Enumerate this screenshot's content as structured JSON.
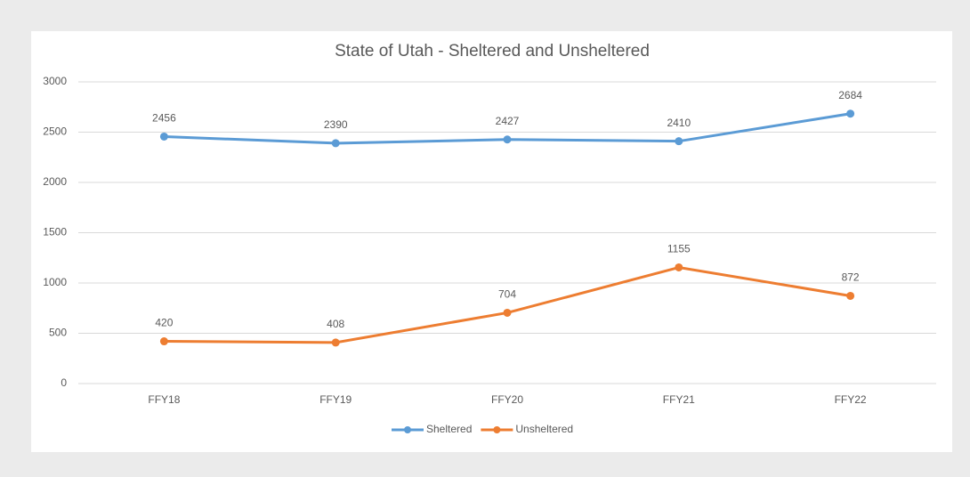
{
  "chart_data": {
    "type": "line",
    "title": "State of Utah - Sheltered and Unsheltered",
    "categories": [
      "FFY18",
      "FFY19",
      "FFY20",
      "FFY21",
      "FFY22"
    ],
    "series": [
      {
        "name": "Sheltered",
        "color": "#5b9bd5",
        "values": [
          2456,
          2390,
          2427,
          2410,
          2684
        ]
      },
      {
        "name": "Unsheltered",
        "color": "#ed7d31",
        "values": [
          420,
          408,
          704,
          1155,
          872
        ]
      }
    ],
    "ylim": [
      0,
      3000
    ],
    "yticks": [
      0,
      500,
      1000,
      1500,
      2000,
      2500,
      3000
    ],
    "grid": true,
    "legend": "bottom"
  }
}
